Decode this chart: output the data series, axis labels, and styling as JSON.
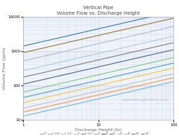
{
  "title": "Vertical Pipe",
  "subtitle": "Volume Flow vs. Discharge Height",
  "xlabel": "Discharge Height (in)",
  "ylabel": "Volume Flow (gpm)",
  "xlim": [
    1,
    100
  ],
  "ylim": [
    10,
    10000
  ],
  "watermark": "engineeringtoolbox.com",
  "bg_color": "#f0f4fa",
  "fig_color": "#ffffff",
  "grid_color": "#c8d4e8",
  "series": [
    {
      "label": "1\"",
      "color": "#6baed6",
      "k": 13
    },
    {
      "label": "1 1/4\"",
      "color": "#fd8d3c",
      "k": 17
    },
    {
      "label": "1 1/2\"",
      "color": "#bdbdbd",
      "k": 22
    },
    {
      "label": "2\"",
      "color": "#f0c040",
      "k": 32
    },
    {
      "label": "2 1/2\"",
      "color": "#4292c6",
      "k": 45
    },
    {
      "label": "3\"",
      "color": "#74c476",
      "k": 65
    },
    {
      "label": "4\"",
      "color": "#3a5a8a",
      "k": 110
    },
    {
      "label": "5\"",
      "color": "#737373",
      "k": 175
    },
    {
      "label": "6\"",
      "color": "#9ecae1",
      "k": 270
    },
    {
      "label": "8\"",
      "color": "#9fb8d8",
      "k": 520
    },
    {
      "label": "10\"",
      "color": "#8c6d2a",
      "k": 900
    },
    {
      "label": "12\"",
      "color": "#2171b5",
      "k": 1400
    }
  ]
}
